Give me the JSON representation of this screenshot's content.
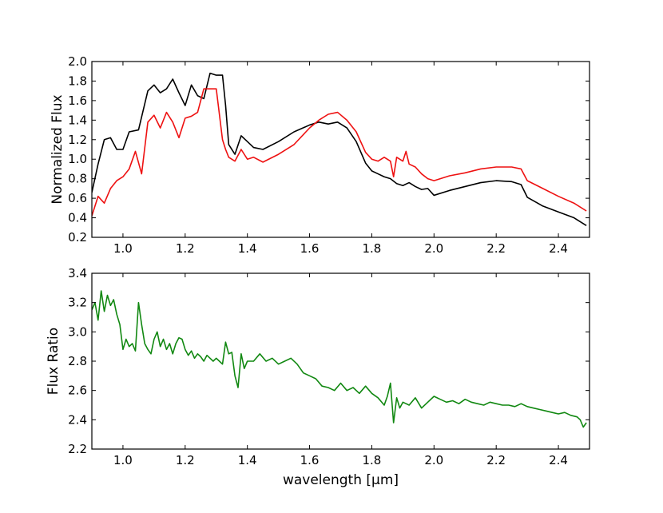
{
  "chart_data": [
    {
      "type": "line",
      "ylabel": "Normalized Flux",
      "xlim": [
        0.9,
        2.5
      ],
      "ylim": [
        0.2,
        2.0
      ],
      "xticks": [
        "1.0",
        "1.2",
        "1.4",
        "1.6",
        "1.8",
        "2.0",
        "2.2",
        "2.4"
      ],
      "yticks": [
        "0.2",
        "0.4",
        "0.6",
        "0.8",
        "1.0",
        "1.2",
        "1.4",
        "1.6",
        "1.8",
        "2.0"
      ],
      "grid": false,
      "series": [
        {
          "color": "#000000",
          "x": [
            0.9,
            0.92,
            0.94,
            0.96,
            0.98,
            1.0,
            1.02,
            1.05,
            1.08,
            1.1,
            1.12,
            1.14,
            1.16,
            1.18,
            1.2,
            1.22,
            1.24,
            1.26,
            1.28,
            1.3,
            1.32,
            1.33,
            1.34,
            1.36,
            1.38,
            1.4,
            1.42,
            1.45,
            1.5,
            1.55,
            1.6,
            1.63,
            1.66,
            1.69,
            1.72,
            1.75,
            1.78,
            1.8,
            1.82,
            1.84,
            1.86,
            1.88,
            1.9,
            1.92,
            1.94,
            1.96,
            1.98,
            2.0,
            2.05,
            2.1,
            2.15,
            2.2,
            2.25,
            2.28,
            2.3,
            2.35,
            2.4,
            2.45,
            2.49
          ],
          "y": [
            0.66,
            0.95,
            1.2,
            1.22,
            1.1,
            1.1,
            1.28,
            1.3,
            1.7,
            1.76,
            1.68,
            1.72,
            1.82,
            1.68,
            1.55,
            1.76,
            1.65,
            1.62,
            1.88,
            1.86,
            1.86,
            1.55,
            1.15,
            1.05,
            1.24,
            1.18,
            1.12,
            1.1,
            1.18,
            1.28,
            1.35,
            1.38,
            1.36,
            1.38,
            1.32,
            1.18,
            0.96,
            0.88,
            0.85,
            0.82,
            0.8,
            0.75,
            0.73,
            0.76,
            0.72,
            0.69,
            0.7,
            0.63,
            0.68,
            0.72,
            0.76,
            0.78,
            0.77,
            0.74,
            0.61,
            0.52,
            0.46,
            0.4,
            0.32
          ]
        },
        {
          "color": "#ee1111",
          "x": [
            0.9,
            0.92,
            0.94,
            0.96,
            0.98,
            1.0,
            1.02,
            1.04,
            1.06,
            1.08,
            1.1,
            1.12,
            1.14,
            1.16,
            1.18,
            1.2,
            1.22,
            1.24,
            1.26,
            1.28,
            1.3,
            1.32,
            1.33,
            1.34,
            1.36,
            1.38,
            1.4,
            1.42,
            1.45,
            1.5,
            1.55,
            1.6,
            1.63,
            1.66,
            1.69,
            1.72,
            1.75,
            1.78,
            1.8,
            1.82,
            1.84,
            1.86,
            1.87,
            1.88,
            1.9,
            1.91,
            1.92,
            1.94,
            1.96,
            1.98,
            2.0,
            2.05,
            2.1,
            2.15,
            2.2,
            2.25,
            2.28,
            2.3,
            2.35,
            2.4,
            2.45,
            2.49
          ],
          "y": [
            0.42,
            0.62,
            0.55,
            0.7,
            0.78,
            0.82,
            0.9,
            1.08,
            0.85,
            1.38,
            1.45,
            1.32,
            1.48,
            1.38,
            1.22,
            1.42,
            1.44,
            1.48,
            1.72,
            1.72,
            1.72,
            1.2,
            1.1,
            1.02,
            0.98,
            1.1,
            1.0,
            1.02,
            0.97,
            1.05,
            1.15,
            1.32,
            1.4,
            1.46,
            1.48,
            1.4,
            1.28,
            1.07,
            1.0,
            0.98,
            1.02,
            0.98,
            0.82,
            1.02,
            0.98,
            1.08,
            0.95,
            0.92,
            0.85,
            0.8,
            0.78,
            0.83,
            0.86,
            0.9,
            0.92,
            0.92,
            0.9,
            0.78,
            0.7,
            0.62,
            0.55,
            0.47
          ]
        }
      ]
    },
    {
      "type": "line",
      "xlabel": "wavelength [μm]",
      "ylabel": "Flux Ratio",
      "xlim": [
        0.9,
        2.5
      ],
      "ylim": [
        2.2,
        3.4
      ],
      "xticks": [
        "1.0",
        "1.2",
        "1.4",
        "1.6",
        "1.8",
        "2.0",
        "2.2",
        "2.4"
      ],
      "yticks": [
        "2.2",
        "2.4",
        "2.6",
        "2.8",
        "3.0",
        "3.2",
        "3.4"
      ],
      "grid": false,
      "series": [
        {
          "color": "#118811",
          "x": [
            0.9,
            0.91,
            0.92,
            0.93,
            0.94,
            0.95,
            0.96,
            0.97,
            0.98,
            0.99,
            1.0,
            1.01,
            1.02,
            1.03,
            1.04,
            1.05,
            1.06,
            1.07,
            1.08,
            1.09,
            1.1,
            1.11,
            1.12,
            1.13,
            1.14,
            1.15,
            1.16,
            1.17,
            1.18,
            1.19,
            1.2,
            1.21,
            1.22,
            1.23,
            1.24,
            1.25,
            1.26,
            1.27,
            1.28,
            1.29,
            1.3,
            1.31,
            1.32,
            1.33,
            1.34,
            1.35,
            1.36,
            1.37,
            1.38,
            1.39,
            1.4,
            1.42,
            1.44,
            1.46,
            1.48,
            1.5,
            1.52,
            1.54,
            1.56,
            1.58,
            1.6,
            1.62,
            1.64,
            1.66,
            1.68,
            1.7,
            1.72,
            1.74,
            1.76,
            1.78,
            1.8,
            1.82,
            1.84,
            1.85,
            1.86,
            1.87,
            1.88,
            1.89,
            1.9,
            1.92,
            1.94,
            1.96,
            1.98,
            2.0,
            2.02,
            2.04,
            2.06,
            2.08,
            2.1,
            2.12,
            2.14,
            2.16,
            2.18,
            2.2,
            2.22,
            2.24,
            2.26,
            2.28,
            2.3,
            2.32,
            2.34,
            2.36,
            2.38,
            2.4,
            2.42,
            2.44,
            2.46,
            2.47,
            2.48,
            2.49
          ],
          "y": [
            3.15,
            3.2,
            3.08,
            3.28,
            3.14,
            3.25,
            3.18,
            3.22,
            3.12,
            3.05,
            2.88,
            2.95,
            2.9,
            2.92,
            2.87,
            3.2,
            3.05,
            2.92,
            2.88,
            2.85,
            2.95,
            3.0,
            2.9,
            2.95,
            2.88,
            2.92,
            2.85,
            2.92,
            2.96,
            2.95,
            2.88,
            2.84,
            2.87,
            2.82,
            2.85,
            2.83,
            2.8,
            2.84,
            2.82,
            2.8,
            2.82,
            2.8,
            2.78,
            2.93,
            2.85,
            2.86,
            2.7,
            2.62,
            2.85,
            2.75,
            2.8,
            2.8,
            2.85,
            2.8,
            2.82,
            2.78,
            2.8,
            2.82,
            2.78,
            2.72,
            2.7,
            2.68,
            2.63,
            2.62,
            2.6,
            2.65,
            2.6,
            2.62,
            2.58,
            2.63,
            2.58,
            2.55,
            2.5,
            2.56,
            2.65,
            2.38,
            2.55,
            2.48,
            2.52,
            2.5,
            2.55,
            2.48,
            2.52,
            2.56,
            2.54,
            2.52,
            2.53,
            2.51,
            2.54,
            2.52,
            2.51,
            2.5,
            2.52,
            2.51,
            2.5,
            2.5,
            2.49,
            2.51,
            2.49,
            2.48,
            2.47,
            2.46,
            2.45,
            2.44,
            2.45,
            2.43,
            2.42,
            2.4,
            2.35,
            2.38
          ]
        }
      ]
    }
  ]
}
